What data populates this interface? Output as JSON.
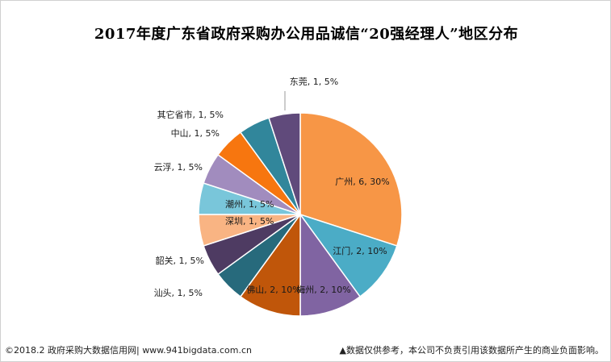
{
  "colors": {
    "background": "#ffffff",
    "border": "#d0d0d0",
    "leader_line": "#9a9a9a"
  },
  "footer": {
    "left": "©2018.2 政府采购大数据信用网| www.941bigdata.com.cn",
    "right": "▲数据仅供参考，本公司不负责引用该数据所产生的商业负面影响。"
  },
  "chart_data": {
    "type": "pie",
    "title": "2017年度广东省政府采购办公用品诚信“20强经理人”地区分布",
    "start_angle_deg": 0,
    "direction": "clockwise",
    "legend": "none",
    "slices": [
      {
        "name": "广州",
        "value": 6,
        "percent": 30,
        "label": "广州, 6, 30%",
        "color": "#f79646"
      },
      {
        "name": "江门",
        "value": 2,
        "percent": 10,
        "label": "江门, 2, 10%",
        "color": "#4bacc6"
      },
      {
        "name": "梅州",
        "value": 2,
        "percent": 10,
        "label": "梅州, 2, 10%",
        "color": "#8064a2"
      },
      {
        "name": "佛山",
        "value": 2,
        "percent": 10,
        "label": "佛山, 2, 10%",
        "color": "#c0560a"
      },
      {
        "name": "汕头",
        "value": 1,
        "percent": 5,
        "label": "汕头, 1, 5%",
        "color": "#276a7c"
      },
      {
        "name": "韶关",
        "value": 1,
        "percent": 5,
        "label": "韶关, 1, 5%",
        "color": "#4e3b62"
      },
      {
        "name": "深圳",
        "value": 1,
        "percent": 5,
        "label": "深圳, 1, 5%",
        "color": "#f9b483"
      },
      {
        "name": "潮州",
        "value": 1,
        "percent": 5,
        "label": "潮州, 1, 5%",
        "color": "#79c6da"
      },
      {
        "name": "云浮",
        "value": 1,
        "percent": 5,
        "label": "云浮, 1, 5%",
        "color": "#a18cbe"
      },
      {
        "name": "中山",
        "value": 1,
        "percent": 5,
        "label": "中山, 1, 5%",
        "color": "#f7760f"
      },
      {
        "name": "其它省市",
        "value": 1,
        "percent": 5,
        "label": "其它省市, 1, 5%",
        "color": "#31869b"
      },
      {
        "name": "东莞",
        "value": 1,
        "percent": 5,
        "label": "东莞, 1, 5%",
        "color": "#604a7b"
      }
    ]
  }
}
